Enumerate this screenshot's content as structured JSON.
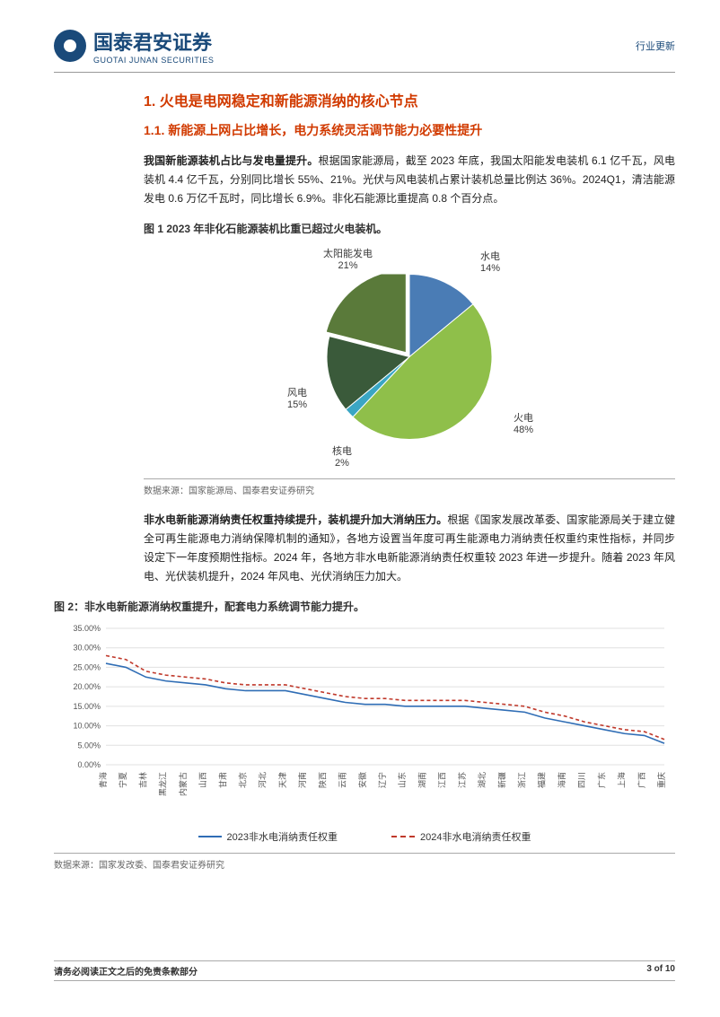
{
  "header": {
    "company_cn": "国泰君安证券",
    "company_en": "GUOTAI JUNAN SECURITIES",
    "doc_type": "行业更新"
  },
  "section": {
    "h1": "1.  火电是电网稳定和新能源消纳的核心节点",
    "h2": "1.1.  新能源上网占比增长，电力系统灵活调节能力必要性提升",
    "p1_bold": "我国新能源装机占比与发电量提升。",
    "p1": "根据国家能源局，截至 2023 年底，我国太阳能发电装机 6.1 亿千瓦，风电装机 4.4 亿千瓦，分别同比增长 55%、21%。光伏与风电装机占累计装机总量比例达 36%。2024Q1，清洁能源发电 0.6 万亿千瓦时，同比增长 6.9%。非化石能源比重提高 0.8 个百分点。",
    "p2_bold": "非水电新能源消纳责任权重持续提升，装机提升加大消纳压力。",
    "p2": "根据《国家发展改革委、国家能源局关于建立健全可再生能源电力消纳保障机制的通知》，各地方设置当年度可再生能源电力消纳责任权重约束性指标，并同步设定下一年度预期性指标。2024 年，各地方非水电新能源消纳责任权重较 2023 年进一步提升。随着 2023 年风电、光伏装机提升，2024 年风电、光伏消纳压力加大。"
  },
  "fig1": {
    "caption": "图 1 2023 年非化石能源装机比重已超过火电装机。",
    "source": "数据来源：国家能源局、国泰君安证券研究",
    "type": "pie",
    "slices": [
      {
        "label": "水电",
        "pct": 14,
        "color": "#4a7cb5"
      },
      {
        "label": "火电",
        "pct": 48,
        "color": "#8fbf4a"
      },
      {
        "label": "核电",
        "pct": 2,
        "color": "#3aa6c4"
      },
      {
        "label": "风电",
        "pct": 15,
        "color": "#3a5a3a"
      },
      {
        "label": "太阳能发电",
        "pct": 21,
        "color": "#5a7a3a"
      }
    ],
    "label_fontsize": 11,
    "background_color": "#ffffff",
    "radius": 92
  },
  "fig2": {
    "caption": "图 2：非水电新能源消纳权重提升，配套电力系统调节能力提升。",
    "source": "数据来源：国家发改委、国泰君安证券研究",
    "type": "line",
    "ylabel_suffix": "%",
    "ylim": [
      0,
      35
    ],
    "ytick_step": 5,
    "grid_color": "#e0e0e0",
    "background_color": "#ffffff",
    "label_fontsize": 9,
    "categories": [
      "青海",
      "宁夏",
      "吉林",
      "黑龙江",
      "内蒙古",
      "山西",
      "甘肃",
      "北京",
      "河北",
      "天津",
      "河南",
      "陕西",
      "云南",
      "安徽",
      "辽宁",
      "山东",
      "湖南",
      "江西",
      "江苏",
      "湖北",
      "新疆",
      "浙江",
      "福建",
      "海南",
      "四川",
      "广东",
      "上海",
      "广西",
      "重庆"
    ],
    "series": [
      {
        "name": "2023非水电消纳责任权重",
        "color": "#2f6db5",
        "dash": "none",
        "values": [
          26.0,
          25.0,
          22.5,
          21.5,
          21.0,
          20.5,
          19.5,
          19.0,
          19.0,
          19.0,
          18.0,
          17.0,
          16.0,
          15.5,
          15.5,
          15.0,
          15.0,
          15.0,
          15.0,
          14.5,
          14.0,
          13.5,
          12.0,
          11.0,
          10.0,
          9.0,
          8.0,
          7.5,
          5.5
        ]
      },
      {
        "name": "2024非水电消纳责任权重",
        "color": "#c0392b",
        "dash": "4,3",
        "values": [
          28.0,
          27.0,
          24.0,
          23.0,
          22.5,
          22.0,
          21.0,
          20.5,
          20.5,
          20.5,
          19.5,
          18.5,
          17.5,
          17.0,
          17.0,
          16.5,
          16.5,
          16.5,
          16.5,
          16.0,
          15.5,
          15.0,
          13.5,
          12.5,
          11.0,
          10.0,
          9.0,
          8.5,
          6.5
        ]
      }
    ]
  },
  "footer": {
    "disclaimer": "请务必阅读正文之后的免责条款部分",
    "page": "3 of 10"
  }
}
